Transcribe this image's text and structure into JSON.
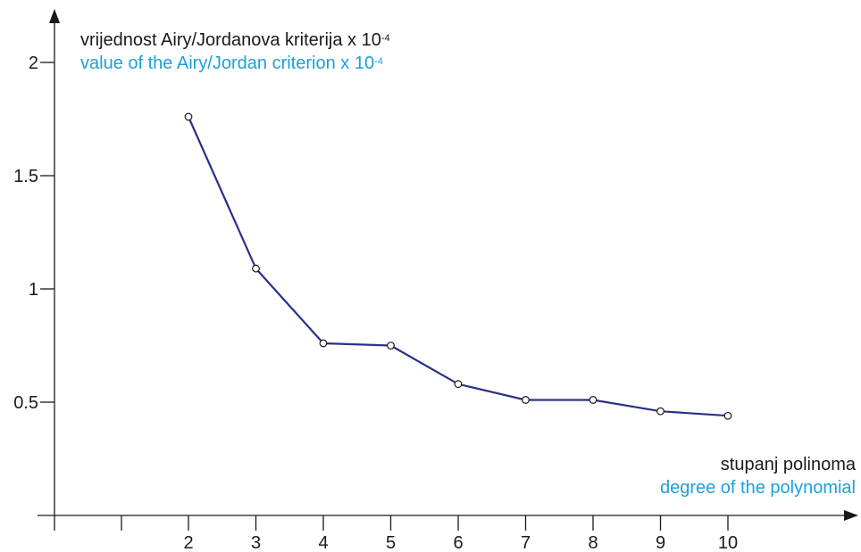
{
  "chart_data": {
    "type": "line",
    "ylabel": {
      "line1_text": "vrijednost Airy/Jordanova kriterija x 10",
      "line1_sup": "-4",
      "line2_text": "value of the Airy/Jordan criterion x 10",
      "line2_sup": "-4"
    },
    "xlabel": {
      "line1": "stupanj polinoma",
      "line2": "degree of the polynomial"
    },
    "x_ticks": [
      2,
      3,
      4,
      5,
      6,
      7,
      8,
      9,
      10
    ],
    "y_ticks": [
      "0.5",
      "1",
      "1.5",
      "2"
    ],
    "ylim": [
      0,
      2
    ],
    "x": [
      2,
      3,
      4,
      5,
      6,
      7,
      8,
      9,
      10
    ],
    "series": [
      {
        "values": [
          1.76,
          1.09,
          0.76,
          0.75,
          0.58,
          0.51,
          0.51,
          0.46,
          0.44
        ]
      }
    ],
    "colors": {
      "line": "#2b3088",
      "label_primary": "#1a1a1a",
      "label_secondary": "#1ba1db",
      "axis": "#1a1a1a"
    },
    "marker": "open-circle",
    "grid": false
  }
}
